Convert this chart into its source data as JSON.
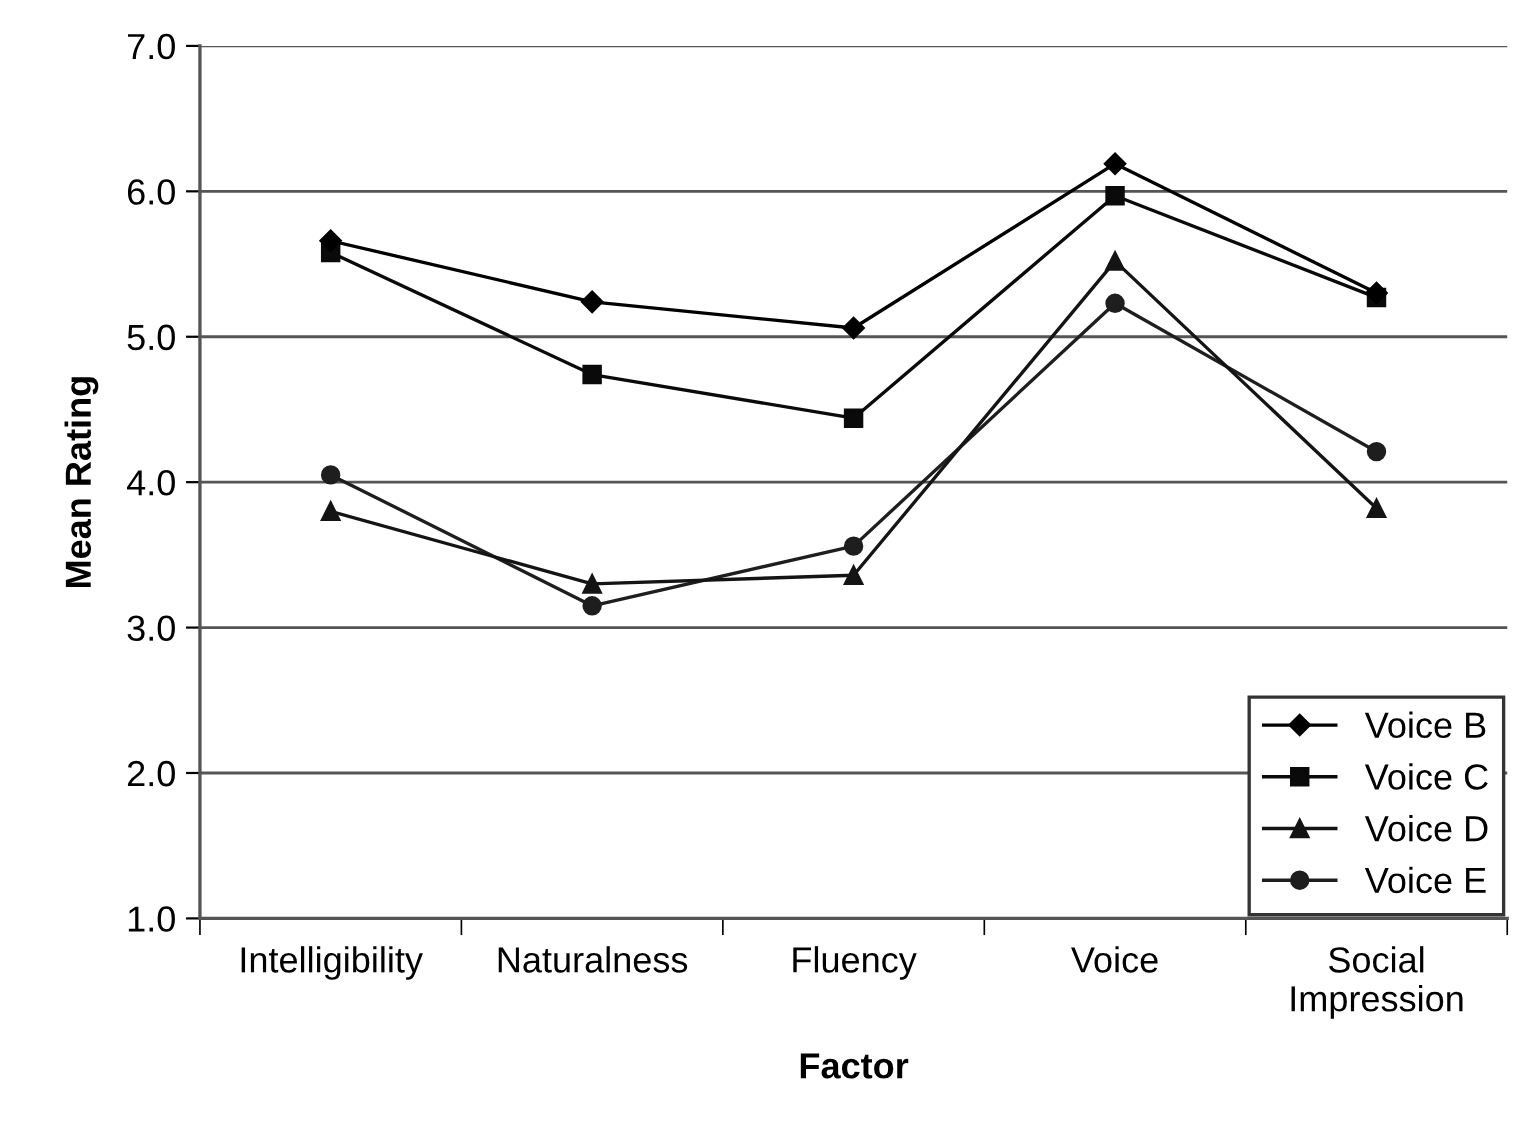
{
  "chart_data": {
    "type": "line",
    "xlabel": "Factor",
    "ylabel": "Mean Rating",
    "categories": [
      "Intelligibility",
      "Naturalness",
      "Fluency",
      "Voice",
      "Social\nImpression"
    ],
    "series": [
      {
        "name": "Voice B",
        "color": "#000000",
        "marker": "diamond",
        "values": [
          5.66,
          5.24,
          5.06,
          6.19,
          5.3
        ]
      },
      {
        "name": "Voice C",
        "color": "#0a0a0a",
        "marker": "square",
        "values": [
          5.58,
          4.74,
          4.44,
          5.97,
          5.27
        ]
      },
      {
        "name": "Voice D",
        "color": "#141414",
        "marker": "triangle",
        "values": [
          3.8,
          3.3,
          3.36,
          5.52,
          3.82
        ]
      },
      {
        "name": "Voice E",
        "color": "#1e1e1e",
        "marker": "circle",
        "values": [
          4.05,
          3.15,
          3.56,
          5.23,
          4.21
        ]
      }
    ],
    "ylim": [
      1.0,
      7.0
    ],
    "yticks": [
      {
        "value": 1,
        "label": "1.0"
      },
      {
        "value": 2,
        "label": "2.0"
      },
      {
        "value": 3,
        "label": "3.0"
      },
      {
        "value": 4,
        "label": "4.0"
      },
      {
        "value": 5,
        "label": "5.0"
      },
      {
        "value": 6,
        "label": "6.0"
      },
      {
        "value": 7,
        "label": "7.0"
      }
    ],
    "grid": "y",
    "legend": "bottom right",
    "line_style": "solid"
  }
}
